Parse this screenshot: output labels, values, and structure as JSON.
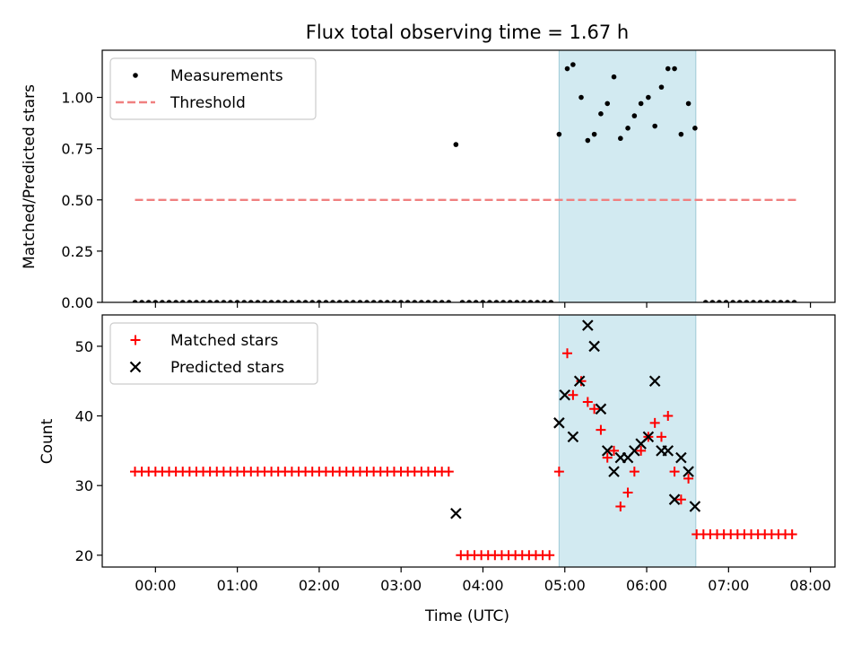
{
  "chart_data": [
    {
      "type": "scatter",
      "title": "Flux total observing time = 1.67 h",
      "xlabel": "",
      "ylabel": "Matched/Predicted stars",
      "xlim": [
        -0.65,
        8.3
      ],
      "ylim": [
        0,
        1.23
      ],
      "yticks": [
        0,
        0.25,
        0.5,
        0.75,
        1.0
      ],
      "ytick_labels": [
        "0.00",
        "0.25",
        "0.50",
        "0.75",
        "1.00"
      ],
      "legend_position": "top-left",
      "highlight_span": {
        "start": 4.93,
        "end": 6.6,
        "color": "#add8e6"
      },
      "series": [
        {
          "name": "Measurements",
          "marker": "dot",
          "color": "#000000",
          "points": [
            [
              4.93,
              0.82
            ],
            [
              5.03,
              1.14
            ],
            [
              5.1,
              1.16
            ],
            [
              5.2,
              1.0
            ],
            [
              5.28,
              0.79
            ],
            [
              5.36,
              0.82
            ],
            [
              5.44,
              0.92
            ],
            [
              5.52,
              0.97
            ],
            [
              5.6,
              1.1
            ],
            [
              5.68,
              0.8
            ],
            [
              5.77,
              0.85
            ],
            [
              5.85,
              0.91
            ],
            [
              5.93,
              0.97
            ],
            [
              6.02,
              1.0
            ],
            [
              6.1,
              0.86
            ],
            [
              6.18,
              1.05
            ],
            [
              6.26,
              1.14
            ],
            [
              6.34,
              1.14
            ],
            [
              6.42,
              0.82
            ],
            [
              6.51,
              0.97
            ],
            [
              6.59,
              0.85
            ],
            [
              3.67,
              0.77
            ]
          ]
        },
        {
          "name": "Threshold",
          "marker": "dashed-line",
          "color": "#f08080",
          "points": [
            [
              -0.25,
              0.5
            ],
            [
              7.85,
              0.5
            ]
          ]
        }
      ]
    },
    {
      "type": "scatter",
      "title": "",
      "xlabel": "Time (UTC)",
      "ylabel": "Count",
      "xlim": [
        -0.65,
        8.3
      ],
      "ylim": [
        18.3,
        54.5
      ],
      "yticks": [
        20,
        30,
        40,
        50
      ],
      "ytick_labels": [
        "20",
        "30",
        "40",
        "50"
      ],
      "xticks": [
        0,
        1,
        2,
        3,
        4,
        5,
        6,
        7,
        8
      ],
      "xtick_labels": [
        "00:00",
        "01:00",
        "02:00",
        "03:00",
        "04:00",
        "05:00",
        "06:00",
        "07:00",
        "08:00"
      ],
      "legend_position": "top-left",
      "highlight_span": {
        "start": 4.93,
        "end": 6.6,
        "color": "#add8e6"
      },
      "series": [
        {
          "name": "Matched stars",
          "marker": "plus",
          "color": "#ff0000",
          "points": [
            [
              4.93,
              32
            ],
            [
              5.03,
              49
            ],
            [
              5.1,
              43
            ],
            [
              5.2,
              45
            ],
            [
              5.28,
              42
            ],
            [
              5.36,
              41
            ],
            [
              5.44,
              38
            ],
            [
              5.52,
              34
            ],
            [
              5.6,
              35
            ],
            [
              5.68,
              27
            ],
            [
              5.77,
              29
            ],
            [
              5.85,
              32
            ],
            [
              5.93,
              35
            ],
            [
              6.02,
              37
            ],
            [
              6.1,
              39
            ],
            [
              6.18,
              37
            ],
            [
              6.26,
              40
            ],
            [
              6.34,
              32
            ],
            [
              6.42,
              28
            ],
            [
              6.51,
              31
            ]
          ]
        },
        {
          "name": "Predicted stars",
          "marker": "x",
          "color": "#000000",
          "points": [
            [
              3.67,
              26
            ],
            [
              4.93,
              39
            ],
            [
              5.0,
              43
            ],
            [
              5.1,
              37
            ],
            [
              5.18,
              45
            ],
            [
              5.28,
              53
            ],
            [
              5.36,
              50
            ],
            [
              5.44,
              41
            ],
            [
              5.52,
              35
            ],
            [
              5.6,
              32
            ],
            [
              5.68,
              34
            ],
            [
              5.77,
              34
            ],
            [
              5.85,
              35
            ],
            [
              5.93,
              36
            ],
            [
              6.02,
              37
            ],
            [
              6.1,
              45
            ],
            [
              6.18,
              35
            ],
            [
              6.26,
              35
            ],
            [
              6.34,
              28
            ],
            [
              6.42,
              34
            ],
            [
              6.51,
              32
            ],
            [
              6.59,
              27
            ]
          ]
        }
      ]
    }
  ]
}
